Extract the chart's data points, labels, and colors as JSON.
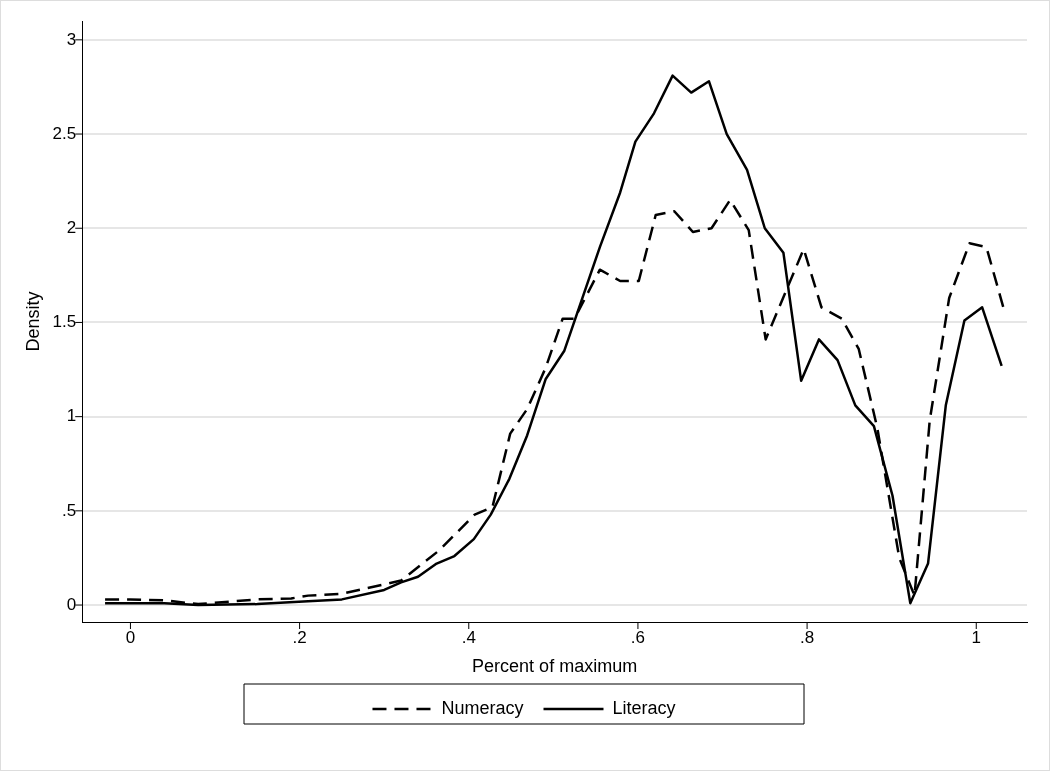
{
  "chart_data": {
    "type": "line",
    "xlabel": "Percent of maximum",
    "ylabel": "Density",
    "xlim": [
      -0.057,
      1.06
    ],
    "ylim": [
      -0.09,
      3.1
    ],
    "xticks": [
      {
        "value": 0,
        "label": "0"
      },
      {
        "value": 0.2,
        "label": ".2"
      },
      {
        "value": 0.4,
        "label": ".4"
      },
      {
        "value": 0.6,
        "label": ".6"
      },
      {
        "value": 0.8,
        "label": ".8"
      },
      {
        "value": 1,
        "label": "1"
      }
    ],
    "yticks": [
      {
        "value": 0,
        "label": "0"
      },
      {
        "value": 0.5,
        "label": ".5"
      },
      {
        "value": 1,
        "label": "1"
      },
      {
        "value": 1.5,
        "label": "1.5"
      },
      {
        "value": 2,
        "label": "2"
      },
      {
        "value": 2.5,
        "label": "2.5"
      },
      {
        "value": 3,
        "label": "3"
      }
    ],
    "grid": "y",
    "legend": "bottom",
    "marker": "none",
    "series": [
      {
        "name": "Numeracy",
        "color": "#000000",
        "line_style": "dashed",
        "x": [
          -0.03,
          0,
          0.04,
          0.08,
          0.15,
          0.19,
          0.21,
          0.25,
          0.29,
          0.32,
          0.365,
          0.407,
          0.428,
          0.449,
          0.469,
          0.491,
          0.511,
          0.525,
          0.555,
          0.579,
          0.601,
          0.621,
          0.643,
          0.665,
          0.687,
          0.709,
          0.731,
          0.751,
          0.796,
          0.817,
          0.841,
          0.861,
          0.883,
          0.909,
          0.927,
          0.945,
          0.968,
          0.992,
          1.012,
          1.032
        ],
        "values": [
          0.03,
          0.03,
          0.025,
          0.005,
          0.03,
          0.035,
          0.05,
          0.06,
          0.1,
          0.13,
          0.29,
          0.48,
          0.52,
          0.91,
          1.04,
          1.26,
          1.52,
          1.52,
          1.78,
          1.72,
          1.72,
          2.07,
          2.09,
          1.98,
          2.0,
          2.15,
          1.99,
          1.41,
          1.89,
          1.58,
          1.52,
          1.36,
          0.94,
          0.25,
          0.05,
          0.98,
          1.63,
          1.92,
          1.9,
          1.58
        ]
      },
      {
        "name": "Literacy",
        "color": "#000000",
        "line_style": "solid",
        "x": [
          -0.03,
          0,
          0.04,
          0.08,
          0.15,
          0.21,
          0.25,
          0.3,
          0.32,
          0.34,
          0.362,
          0.383,
          0.406,
          0.426,
          0.448,
          0.469,
          0.491,
          0.513,
          0.555,
          0.579,
          0.597,
          0.619,
          0.641,
          0.663,
          0.684,
          0.705,
          0.729,
          0.75,
          0.772,
          0.793,
          0.814,
          0.836,
          0.857,
          0.879,
          0.901,
          0.922,
          0.943,
          0.964,
          0.986,
          1.007,
          1.03
        ],
        "values": [
          0.01,
          0.01,
          0.01,
          0,
          0.005,
          0.02,
          0.03,
          0.08,
          0.12,
          0.15,
          0.22,
          0.26,
          0.35,
          0.48,
          0.67,
          0.9,
          1.2,
          1.35,
          1.9,
          2.19,
          2.46,
          2.61,
          2.81,
          2.72,
          2.78,
          2.5,
          2.31,
          2.0,
          1.87,
          1.19,
          1.41,
          1.3,
          1.06,
          0.95,
          0.58,
          0.01,
          0.22,
          1.06,
          1.51,
          1.58,
          1.27
        ]
      }
    ]
  }
}
